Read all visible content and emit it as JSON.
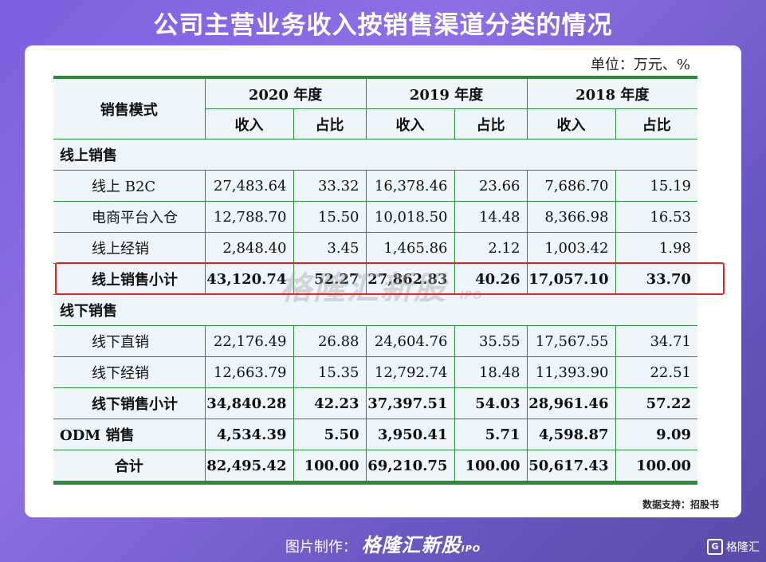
{
  "title": "公司主营业务收入按销售渠道分类的情况",
  "unit": "单位：万元、%",
  "header": {
    "mode": "销售模式",
    "years": [
      "2020 年度",
      "2019 年度",
      "2018 年度"
    ],
    "income": "收入",
    "share": "占比"
  },
  "rows": [
    {
      "type": "section",
      "label": "线上销售"
    },
    {
      "type": "item",
      "label": "线上 B2C",
      "values": [
        "27,483.64",
        "33.32",
        "16,378.46",
        "23.66",
        "7,686.70",
        "15.19"
      ]
    },
    {
      "type": "item",
      "label": "电商平台入仓",
      "values": [
        "12,788.70",
        "15.50",
        "10,018.50",
        "14.48",
        "8,366.98",
        "16.53"
      ]
    },
    {
      "type": "item",
      "label": "线上经销",
      "values": [
        "2,848.40",
        "3.45",
        "1,465.86",
        "2.12",
        "1,003.42",
        "1.98"
      ]
    },
    {
      "type": "subtotal",
      "label": "线上销售小计",
      "values": [
        "43,120.74",
        "52.27",
        "27,862.83",
        "40.26",
        "17,057.10",
        "33.70"
      ]
    },
    {
      "type": "section",
      "label": "线下销售"
    },
    {
      "type": "item",
      "label": "线下直销",
      "values": [
        "22,176.49",
        "26.88",
        "24,604.76",
        "35.55",
        "17,567.55",
        "34.71"
      ]
    },
    {
      "type": "item",
      "label": "线下经销",
      "values": [
        "12,663.79",
        "15.35",
        "12,792.74",
        "18.48",
        "11,393.90",
        "22.51"
      ]
    },
    {
      "type": "subtotal",
      "label": "线下销售小计",
      "values": [
        "34,840.28",
        "42.23",
        "37,397.51",
        "54.03",
        "28,961.46",
        "57.22"
      ]
    },
    {
      "type": "top",
      "label": "ODM 销售",
      "values": [
        "4,534.39",
        "5.50",
        "3,950.41",
        "5.71",
        "4,598.87",
        "9.09"
      ]
    },
    {
      "type": "total",
      "label": "合计",
      "values": [
        "82,495.42",
        "100.00",
        "69,210.75",
        "100.00",
        "50,617.43",
        "100.00"
      ]
    }
  ],
  "watermark": {
    "text": "格隆汇新股",
    "tag": "IPO"
  },
  "source": "数据支持：招股书",
  "footer": {
    "prefix": "图片制作：",
    "brand": "格隆汇新股",
    "tag": "IPO"
  },
  "corner_logo": {
    "icon_letter": "G",
    "text": "格隆汇"
  },
  "colors": {
    "accent_green": "#2e8b3a",
    "highlight_red": "#e02525",
    "background_purple": "#7d5fe0"
  }
}
